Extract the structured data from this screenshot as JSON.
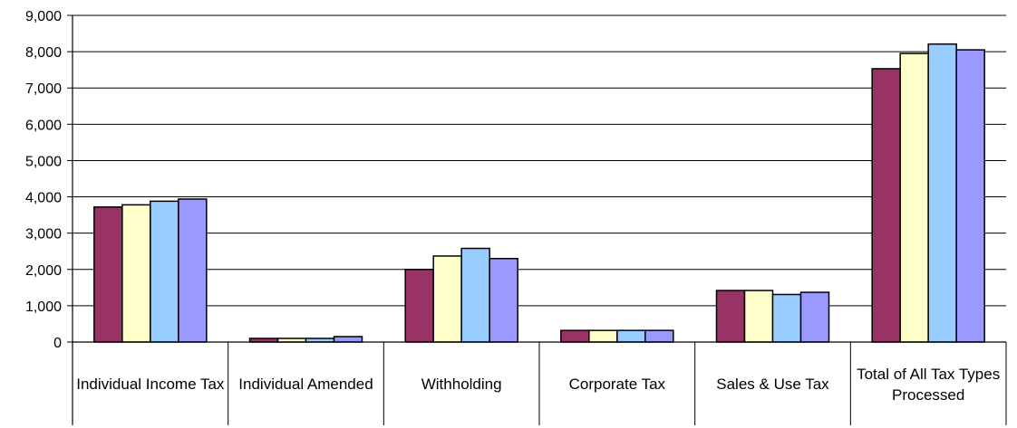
{
  "chart_data": {
    "type": "bar",
    "categories": [
      "Individual Income Tax",
      "Individual Amended",
      "Withholding",
      "Corporate Tax",
      "Sales & Use Tax",
      "Total of All Tax Types Processed"
    ],
    "series": [
      {
        "values": [
          3720,
          100,
          2000,
          320,
          1420,
          7530
        ],
        "color": "#993366"
      },
      {
        "values": [
          3780,
          100,
          2370,
          320,
          1420,
          7950
        ],
        "color": "#ffffcc"
      },
      {
        "values": [
          3880,
          100,
          2580,
          320,
          1310,
          8210
        ],
        "color": "#99ccff"
      },
      {
        "values": [
          3940,
          150,
          2300,
          320,
          1370,
          8050
        ],
        "color": "#9999ff"
      }
    ],
    "yticks": [
      "0",
      "1,000",
      "2,000",
      "3,000",
      "4,000",
      "5,000",
      "6,000",
      "7,000",
      "8,000",
      "9,000"
    ],
    "ylim": [
      0,
      9000
    ],
    "grid": true,
    "title": "",
    "xlabel": "",
    "ylabel": ""
  }
}
